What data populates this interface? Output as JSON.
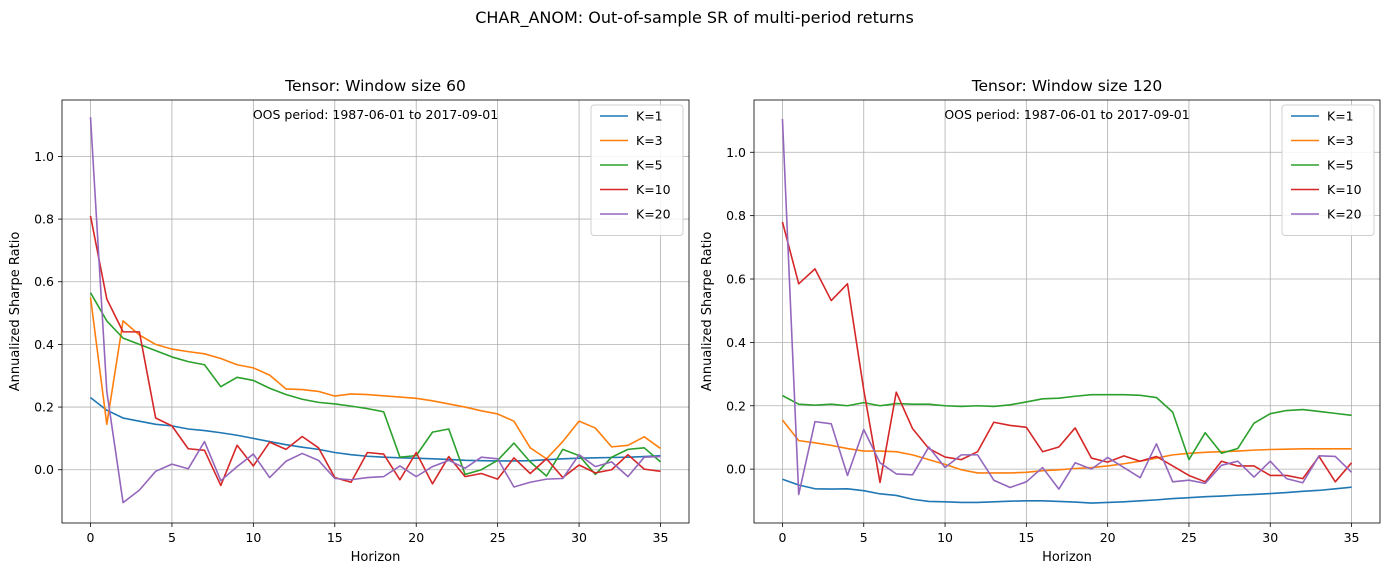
{
  "suptitle": "CHAR_ANOM: Out-of-sample SR of multi-period returns",
  "colors": {
    "K=1": "#1f77b4",
    "K=3": "#ff7f0e",
    "K=5": "#2ca02c",
    "K=10": "#d62728",
    "K=20": "#9467bd"
  },
  "chart_data": [
    {
      "type": "line",
      "title": "Tensor: Window size 60",
      "xlabel": "Horizon",
      "ylabel": "Annualized Sharpe Ratio",
      "annotation": "OOS period: 1987-06-01 to 2017-09-01",
      "xlim": [
        -1.75,
        36.75
      ],
      "ylim": [
        -0.17,
        1.18
      ],
      "xticks": [
        0,
        5,
        10,
        15,
        20,
        25,
        30,
        35
      ],
      "yticks": [
        0.0,
        0.2,
        0.4,
        0.6,
        0.8,
        1.0
      ],
      "yticklabels": [
        "0.0",
        "0.2",
        "0.4",
        "0.6",
        "0.8",
        "1.0"
      ],
      "grid": true,
      "legend_position": "top-right",
      "x": [
        0,
        1,
        2,
        3,
        4,
        5,
        6,
        7,
        8,
        9,
        10,
        11,
        12,
        13,
        14,
        15,
        16,
        17,
        18,
        19,
        20,
        21,
        22,
        23,
        24,
        25,
        26,
        27,
        28,
        29,
        30,
        31,
        32,
        33,
        34,
        35
      ],
      "series": [
        {
          "name": "K=1",
          "values": [
            0.23,
            0.19,
            0.165,
            0.155,
            0.145,
            0.14,
            0.13,
            0.125,
            0.118,
            0.11,
            0.1,
            0.09,
            0.08,
            0.072,
            0.065,
            0.055,
            0.048,
            0.043,
            0.04,
            0.038,
            0.037,
            0.035,
            0.033,
            0.03,
            0.029,
            0.028,
            0.028,
            0.029,
            0.032,
            0.035,
            0.037,
            0.038,
            0.039,
            0.04,
            0.042,
            0.045
          ]
        },
        {
          "name": "K=3",
          "values": [
            0.55,
            0.145,
            0.475,
            0.43,
            0.4,
            0.385,
            0.377,
            0.37,
            0.355,
            0.335,
            0.325,
            0.302,
            0.258,
            0.256,
            0.25,
            0.235,
            0.242,
            0.24,
            0.236,
            0.232,
            0.228,
            0.22,
            0.21,
            0.2,
            0.188,
            0.178,
            0.155,
            0.07,
            0.035,
            0.09,
            0.155,
            0.133,
            0.073,
            0.078,
            0.105,
            0.068
          ]
        },
        {
          "name": "K=5",
          "values": [
            0.565,
            0.475,
            0.42,
            0.4,
            0.38,
            0.36,
            0.345,
            0.335,
            0.265,
            0.295,
            0.285,
            0.26,
            0.24,
            0.225,
            0.215,
            0.21,
            0.203,
            0.195,
            0.185,
            0.04,
            0.045,
            0.12,
            0.13,
            -0.015,
            0.0,
            0.03,
            0.085,
            0.025,
            -0.02,
            0.065,
            0.045,
            -0.015,
            0.04,
            0.065,
            0.07,
            0.025
          ]
        },
        {
          "name": "K=10",
          "values": [
            0.81,
            0.545,
            0.44,
            0.44,
            0.165,
            0.14,
            0.067,
            0.062,
            -0.05,
            0.078,
            0.012,
            0.088,
            0.065,
            0.106,
            0.07,
            -0.025,
            -0.04,
            0.055,
            0.05,
            -0.032,
            0.055,
            -0.045,
            0.042,
            -0.022,
            -0.012,
            -0.03,
            0.038,
            -0.012,
            0.035,
            -0.025,
            0.015,
            -0.01,
            0.0,
            0.048,
            0.002,
            -0.005
          ]
        },
        {
          "name": "K=20",
          "values": [
            1.125,
            0.25,
            -0.105,
            -0.065,
            -0.005,
            0.018,
            0.003,
            0.09,
            -0.035,
            0.01,
            0.05,
            -0.025,
            0.027,
            0.052,
            0.03,
            -0.028,
            -0.032,
            -0.025,
            -0.022,
            0.012,
            -0.022,
            0.01,
            0.03,
            0.005,
            0.04,
            0.035,
            -0.055,
            -0.04,
            -0.03,
            -0.028,
            0.048,
            0.01,
            0.025,
            -0.022,
            0.04,
            0.042
          ]
        }
      ]
    },
    {
      "type": "line",
      "title": "Tensor: Window size 120",
      "xlabel": "Horizon",
      "ylabel": "Annualized Sharpe Ratio",
      "annotation": "OOS period: 1987-06-01 to 2017-09-01",
      "xlim": [
        -1.75,
        36.75
      ],
      "ylim": [
        -0.17,
        1.165
      ],
      "xticks": [
        0,
        5,
        10,
        15,
        20,
        25,
        30,
        35
      ],
      "yticks": [
        0.0,
        0.2,
        0.4,
        0.6,
        0.8,
        1.0
      ],
      "yticklabels": [
        "0.0",
        "0.2",
        "0.4",
        "0.6",
        "0.8",
        "1.0"
      ],
      "grid": true,
      "legend_position": "top-right",
      "x": [
        0,
        1,
        2,
        3,
        4,
        5,
        6,
        7,
        8,
        9,
        10,
        11,
        12,
        13,
        14,
        15,
        16,
        17,
        18,
        19,
        20,
        21,
        22,
        23,
        24,
        25,
        26,
        27,
        28,
        29,
        30,
        31,
        32,
        33,
        34,
        35
      ],
      "series": [
        {
          "name": "K=1",
          "values": [
            -0.032,
            -0.05,
            -0.062,
            -0.063,
            -0.062,
            -0.068,
            -0.078,
            -0.083,
            -0.095,
            -0.102,
            -0.103,
            -0.105,
            -0.105,
            -0.103,
            -0.101,
            -0.1,
            -0.1,
            -0.102,
            -0.104,
            -0.107,
            -0.105,
            -0.103,
            -0.1,
            -0.097,
            -0.093,
            -0.09,
            -0.087,
            -0.085,
            -0.082,
            -0.08,
            -0.077,
            -0.074,
            -0.07,
            -0.067,
            -0.062,
            -0.057
          ]
        },
        {
          "name": "K=3",
          "values": [
            0.155,
            0.09,
            0.083,
            0.075,
            0.065,
            0.057,
            0.057,
            0.055,
            0.045,
            0.03,
            0.015,
            -0.002,
            -0.012,
            -0.012,
            -0.012,
            -0.01,
            -0.005,
            -0.002,
            0.002,
            0.005,
            0.01,
            0.017,
            0.025,
            0.035,
            0.045,
            0.05,
            0.053,
            0.055,
            0.057,
            0.06,
            0.062,
            0.063,
            0.064,
            0.064,
            0.064,
            0.064
          ]
        },
        {
          "name": "K=5",
          "values": [
            0.232,
            0.205,
            0.202,
            0.205,
            0.2,
            0.21,
            0.2,
            0.207,
            0.205,
            0.205,
            0.2,
            0.198,
            0.2,
            0.198,
            0.203,
            0.212,
            0.222,
            0.224,
            0.23,
            0.235,
            0.235,
            0.235,
            0.233,
            0.226,
            0.18,
            0.03,
            0.115,
            0.05,
            0.065,
            0.145,
            0.175,
            0.185,
            0.188,
            0.182,
            0.176,
            0.17
          ]
        },
        {
          "name": "K=10",
          "values": [
            0.78,
            0.585,
            0.632,
            0.532,
            0.585,
            0.25,
            -0.042,
            0.243,
            0.128,
            0.065,
            0.038,
            0.03,
            0.055,
            0.148,
            0.138,
            0.132,
            0.055,
            0.07,
            0.13,
            0.035,
            0.022,
            0.042,
            0.025,
            0.04,
            0.01,
            -0.02,
            -0.04,
            0.025,
            0.01,
            0.01,
            -0.02,
            -0.02,
            -0.03,
            0.04,
            -0.04,
            0.02
          ]
        },
        {
          "name": "K=20",
          "values": [
            1.105,
            -0.08,
            0.15,
            0.143,
            -0.02,
            0.125,
            0.02,
            -0.015,
            -0.018,
            0.07,
            0.005,
            0.045,
            0.045,
            -0.035,
            -0.058,
            -0.04,
            0.005,
            -0.063,
            0.02,
            0.0,
            0.037,
            0.005,
            -0.027,
            0.08,
            -0.04,
            -0.035,
            -0.045,
            0.012,
            0.025,
            -0.025,
            0.025,
            -0.03,
            -0.043,
            0.042,
            0.04,
            -0.01
          ]
        }
      ]
    }
  ]
}
